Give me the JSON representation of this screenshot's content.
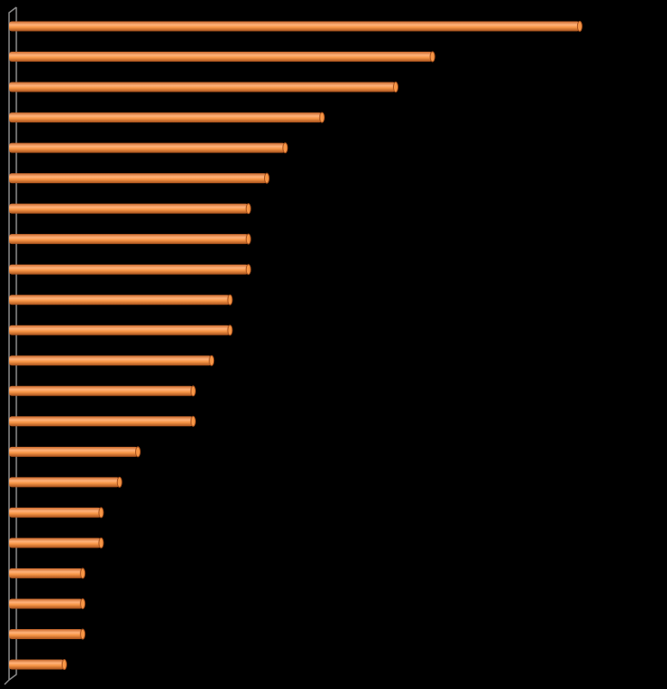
{
  "chart_data": {
    "type": "bar",
    "orientation": "horizontal",
    "categories": [
      null,
      null,
      null,
      null,
      null,
      null,
      null,
      null,
      null,
      null,
      null,
      null,
      null,
      null,
      null,
      null,
      null,
      null,
      null,
      null,
      null,
      null
    ],
    "values": [
      31,
      23,
      21,
      17,
      15,
      14,
      13,
      13,
      13,
      12,
      12,
      11,
      10,
      10,
      7,
      6,
      5,
      5,
      4,
      4,
      4,
      3
    ],
    "color": "#f79646",
    "xlim": [
      0,
      35
    ]
  }
}
